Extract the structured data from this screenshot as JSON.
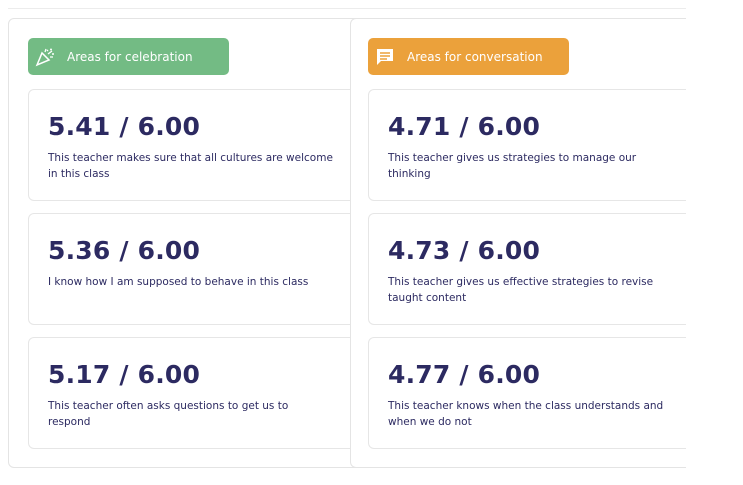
{
  "sections": [
    {
      "title": "Areas for celebration",
      "items": [
        {
          "score": "5.41 / 6.00",
          "statement": "This teacher makes sure that all cultures are welcome in this class"
        },
        {
          "score": "5.36 / 6.00",
          "statement": "I know how I am supposed to behave in this class"
        },
        {
          "score": "5.17 / 6.00",
          "statement": "This teacher often asks questions to get us to respond"
        }
      ]
    },
    {
      "title": "Areas for conversation",
      "items": [
        {
          "score": "4.71 / 6.00",
          "statement": "This teacher gives us strategies to manage our thinking"
        },
        {
          "score": "4.73 / 6.00",
          "statement": "This teacher gives us effective strategies to revise taught content"
        },
        {
          "score": "4.77 / 6.00",
          "statement": "This teacher knows when the class understands and when we do not"
        }
      ]
    }
  ]
}
